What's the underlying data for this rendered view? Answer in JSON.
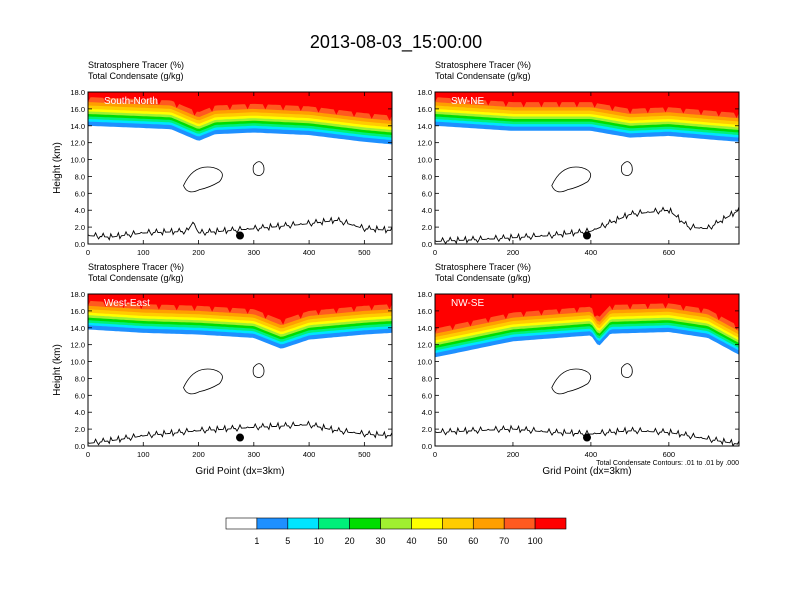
{
  "title": "2013-08-03_15:00:00",
  "colors": {
    "levels": [
      "#ffffff",
      "#1e90ff",
      "#00e5ff",
      "#00f07a",
      "#00dd00",
      "#a0f030",
      "#ffff00",
      "#ffcc00",
      "#ff9f00",
      "#ff5a1f",
      "#ff0000"
    ]
  },
  "chart_data": [
    {
      "type": "contour-cross-section",
      "panel_label": "South-North",
      "header_line1": "Stratosphere Tracer   (%)",
      "header_line2": "Total Condensate   (g/kg)",
      "ylabel": "Height (km)",
      "xlabel": "",
      "xlim": [
        0,
        550
      ],
      "ylim": [
        0,
        18
      ],
      "xticks": [
        0,
        100,
        200,
        300,
        400,
        500
      ],
      "yticks": [
        0.0,
        2.0,
        4.0,
        6.0,
        8.0,
        10.0,
        12.0,
        14.0,
        16.0,
        18.0
      ],
      "tropopause_base": [
        [
          0,
          14.0
        ],
        [
          150,
          13.6
        ],
        [
          200,
          12.2
        ],
        [
          230,
          13.0
        ],
        [
          300,
          13.2
        ],
        [
          400,
          12.9
        ],
        [
          500,
          12.1
        ],
        [
          550,
          11.8
        ]
      ],
      "terrain": [
        [
          0,
          1.0
        ],
        [
          40,
          0.8
        ],
        [
          100,
          1.3
        ],
        [
          180,
          1.5
        ],
        [
          190,
          2.6
        ],
        [
          200,
          1.3
        ],
        [
          300,
          1.8
        ],
        [
          400,
          2.4
        ],
        [
          450,
          2.8
        ],
        [
          500,
          1.8
        ],
        [
          550,
          1.6
        ]
      ],
      "marker": {
        "x": 275,
        "y": 1.0
      }
    },
    {
      "type": "contour-cross-section",
      "panel_label": "SW-NE",
      "header_line1": "Stratosphere Tracer   (%)",
      "header_line2": "Total Condensate   (g/kg)",
      "ylabel": "",
      "xlabel": "",
      "xlim": [
        0,
        780
      ],
      "ylim": [
        0,
        18
      ],
      "xticks": [
        0,
        200,
        400,
        600
      ],
      "yticks": [
        0.0,
        2.0,
        4.0,
        6.0,
        8.0,
        10.0,
        12.0,
        14.0,
        16.0,
        18.0
      ],
      "tropopause_base": [
        [
          0,
          14.0
        ],
        [
          200,
          13.4
        ],
        [
          400,
          13.4
        ],
        [
          500,
          12.6
        ],
        [
          600,
          12.8
        ],
        [
          700,
          12.4
        ],
        [
          780,
          12.1
        ]
      ],
      "terrain": [
        [
          0,
          0.3
        ],
        [
          150,
          0.6
        ],
        [
          300,
          1.0
        ],
        [
          400,
          1.5
        ],
        [
          500,
          3.5
        ],
        [
          600,
          4.0
        ],
        [
          650,
          2.0
        ],
        [
          700,
          1.8
        ],
        [
          780,
          4.0
        ]
      ],
      "marker": {
        "x": 390,
        "y": 1.0
      }
    },
    {
      "type": "contour-cross-section",
      "panel_label": "West-East",
      "header_line1": "Stratosphere Tracer   (%)",
      "header_line2": "Total Condensate   (g/kg)",
      "ylabel": "Height (km)",
      "xlabel": "Grid Point (dx=3km)",
      "xlim": [
        0,
        550
      ],
      "ylim": [
        0,
        18
      ],
      "xticks": [
        0,
        100,
        200,
        300,
        400,
        500
      ],
      "yticks": [
        0.0,
        2.0,
        4.0,
        6.0,
        8.0,
        10.0,
        12.0,
        14.0,
        16.0,
        18.0
      ],
      "tropopause_base": [
        [
          0,
          13.8
        ],
        [
          100,
          13.4
        ],
        [
          200,
          13.2
        ],
        [
          300,
          12.8
        ],
        [
          350,
          11.5
        ],
        [
          400,
          12.6
        ],
        [
          500,
          13.2
        ],
        [
          550,
          13.4
        ]
      ],
      "terrain": [
        [
          0,
          0.3
        ],
        [
          50,
          0.7
        ],
        [
          100,
          1.2
        ],
        [
          200,
          1.8
        ],
        [
          300,
          2.2
        ],
        [
          400,
          2.5
        ],
        [
          450,
          1.8
        ],
        [
          500,
          1.4
        ],
        [
          550,
          1.2
        ]
      ],
      "marker": {
        "x": 275,
        "y": 1.0
      }
    },
    {
      "type": "contour-cross-section",
      "panel_label": "NW-SE",
      "header_line1": "Stratosphere Tracer   (%)",
      "header_line2": "Total Condensate   (g/kg)",
      "ylabel": "",
      "xlabel": "Grid Point (dx=3km)",
      "note": "Total Condensate Contours: .01 to .01 by .000",
      "xlim": [
        0,
        780
      ],
      "ylim": [
        0,
        18
      ],
      "xticks": [
        0,
        200,
        400,
        600
      ],
      "yticks": [
        0.0,
        2.0,
        4.0,
        6.0,
        8.0,
        10.0,
        12.0,
        14.0,
        16.0,
        18.0
      ],
      "tropopause_base": [
        [
          0,
          10.5
        ],
        [
          200,
          12.4
        ],
        [
          400,
          13.1
        ],
        [
          420,
          11.8
        ],
        [
          450,
          13.3
        ],
        [
          600,
          13.5
        ],
        [
          700,
          12.8
        ],
        [
          780,
          10.8
        ]
      ],
      "terrain": [
        [
          0,
          1.6
        ],
        [
          100,
          1.8
        ],
        [
          200,
          2.0
        ],
        [
          300,
          1.6
        ],
        [
          400,
          1.4
        ],
        [
          500,
          1.8
        ],
        [
          600,
          1.6
        ],
        [
          700,
          0.8
        ],
        [
          780,
          0.2
        ]
      ],
      "marker": {
        "x": 390,
        "y": 1.0
      }
    }
  ],
  "colorbar": {
    "labels": [
      "1",
      "5",
      "10",
      "20",
      "30",
      "40",
      "50",
      "60",
      "70",
      "100"
    ]
  }
}
